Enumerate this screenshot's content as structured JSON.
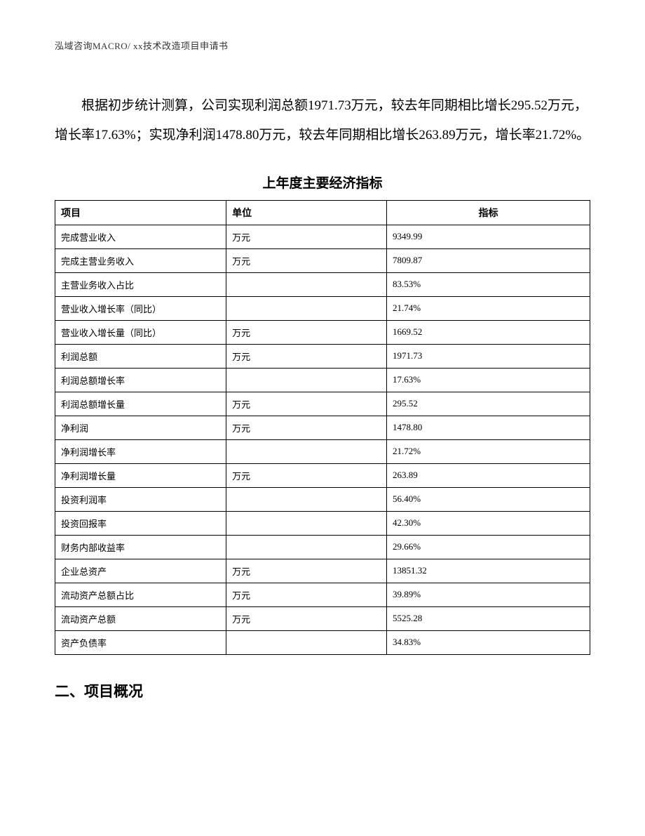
{
  "header": {
    "text": "泓域咨询MACRO/   xx技术改造项目申请书"
  },
  "paragraph": {
    "text": "根据初步统计测算，公司实现利润总额1971.73万元，较去年同期相比增长295.52万元，增长率17.63%；实现净利润1478.80万元，较去年同期相比增长263.89万元，增长率21.72%。"
  },
  "table": {
    "title": "上年度主要经济指标",
    "columns": [
      "项目",
      "单位",
      "指标"
    ],
    "rows": [
      [
        "完成营业收入",
        "万元",
        "9349.99"
      ],
      [
        "完成主营业务收入",
        "万元",
        "7809.87"
      ],
      [
        "主营业务收入占比",
        "",
        "83.53%"
      ],
      [
        "营业收入增长率（同比）",
        "",
        "21.74%"
      ],
      [
        "营业收入增长量（同比）",
        "万元",
        "1669.52"
      ],
      [
        "利润总额",
        "万元",
        "1971.73"
      ],
      [
        "利润总额增长率",
        "",
        "17.63%"
      ],
      [
        "利润总额增长量",
        "万元",
        "295.52"
      ],
      [
        "净利润",
        "万元",
        "1478.80"
      ],
      [
        "净利润增长率",
        "",
        "21.72%"
      ],
      [
        "净利润增长量",
        "万元",
        "263.89"
      ],
      [
        "投资利润率",
        "",
        "56.40%"
      ],
      [
        "投资回报率",
        "",
        "42.30%"
      ],
      [
        "财务内部收益率",
        "",
        "29.66%"
      ],
      [
        "企业总资产",
        "万元",
        "13851.32"
      ],
      [
        "流动资产总额占比",
        "万元",
        "39.89%"
      ],
      [
        "流动资产总额",
        "万元",
        "5525.28"
      ],
      [
        "资产负债率",
        "",
        "34.83%"
      ]
    ]
  },
  "section_heading": {
    "text": "二、项目概况"
  },
  "styles": {
    "background_color": "#ffffff",
    "text_color": "#000000",
    "header_color": "#333333",
    "border_color": "#000000",
    "body_fontsize": 19,
    "table_fontsize": 13,
    "header_fontsize": 13,
    "title_fontsize": 19,
    "section_fontsize": 21
  }
}
